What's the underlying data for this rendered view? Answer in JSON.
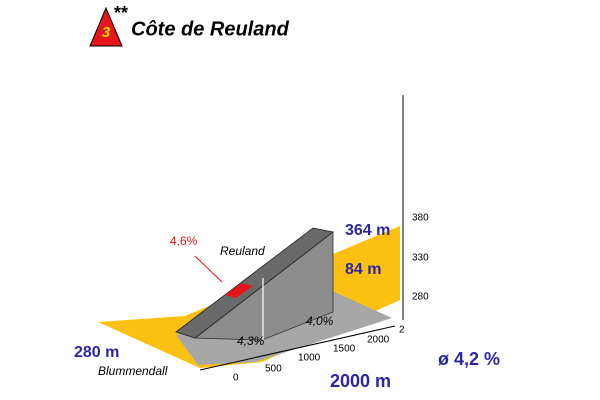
{
  "header": {
    "category": "3",
    "stars": "**",
    "title": "Côte de Reuland"
  },
  "profile": {
    "max_grade": "4,6%",
    "summit_name": "Reuland",
    "summit_altitude": "364 m",
    "elevation_gain": "84 m",
    "altitude_ticks": [
      "380",
      "330",
      "280"
    ],
    "start_altitude": "280 m",
    "start_name": "Blummendall",
    "segment_grades": [
      "4,3%",
      "4,0%"
    ],
    "distance_ticks": [
      "0",
      "500",
      "1000",
      "1500",
      "2000",
      "2"
    ],
    "length": "2000 m",
    "average_grade": "ø 4,2 %"
  }
}
